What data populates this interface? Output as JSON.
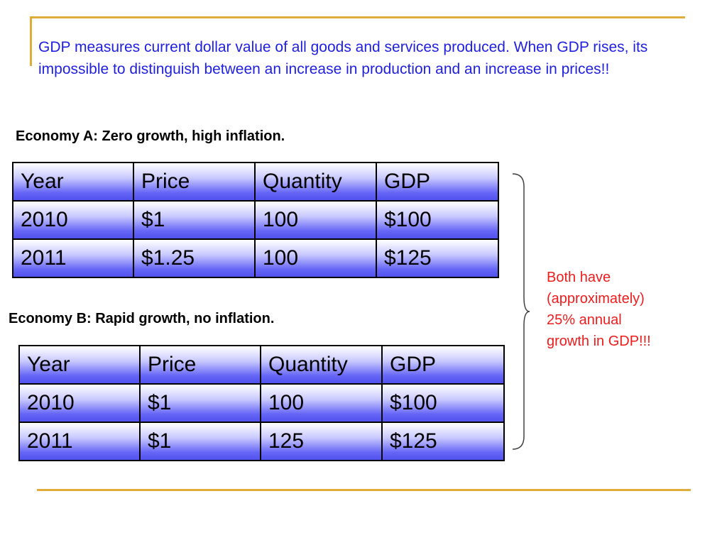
{
  "intro_text": "GDP measures current dollar value of all goods and services produced.  When GDP rises, its impossible to distinguish between an increase in production and an increase in prices!!",
  "economy_a": {
    "caption": "Economy A:  Zero growth, high inflation.",
    "headers": [
      "Year",
      "Price",
      "Quantity",
      "GDP"
    ],
    "rows": [
      [
        "2010",
        "$1",
        "100",
        "$100"
      ],
      [
        "2011",
        "$1.25",
        "100",
        "$125"
      ]
    ]
  },
  "economy_b": {
    "caption": "Economy B:  Rapid growth, no inflation.",
    "headers": [
      "Year",
      "Price",
      "Quantity",
      "GDP"
    ],
    "rows": [
      [
        "2010",
        "$1",
        "100",
        "$100"
      ],
      [
        "2011",
        "$1",
        "125",
        "$125"
      ]
    ]
  },
  "side_note": {
    "lines": [
      "Both have",
      "(approximately)",
      "25% annual",
      "growth in GDP!!!"
    ]
  },
  "colors": {
    "intro_text": "#1f1fe0",
    "side_note": "#ee1c1c",
    "rule": "#e0ad3a",
    "cell_gradient_bottom": "#5252ef"
  }
}
